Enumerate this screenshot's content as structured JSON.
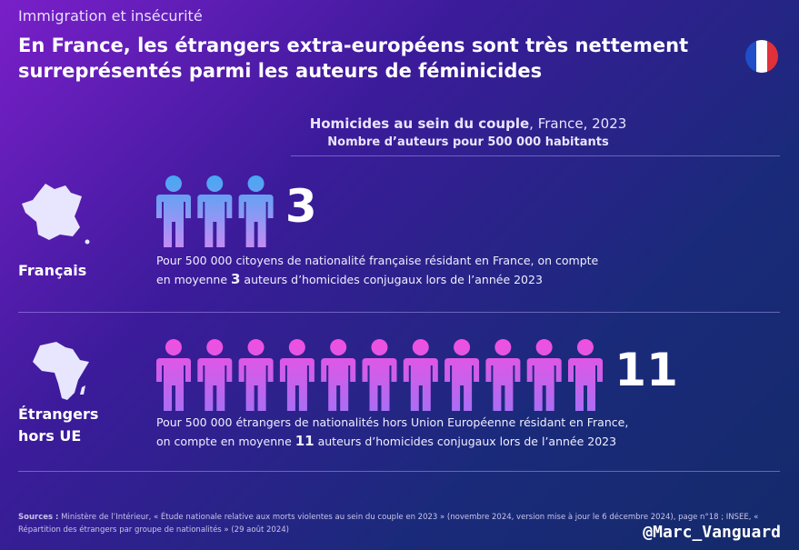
{
  "header": {
    "kicker": "Immigration et insécurité",
    "headline": "En France, les étrangers extra-européens sont très nettement surreprésentés parmi les auteurs de féminicides"
  },
  "chart_data": {
    "type": "pictogram",
    "title": "Homicides au sein du couple",
    "title_suffix": ", France, 2023",
    "subtitle": "Nombre d’auteurs pour 500 000 habitants",
    "categories": [
      "Français",
      "Étrangers hors UE"
    ],
    "values": [
      3,
      11
    ],
    "icon_colors": [
      [
        "#45a8f3",
        "#c28cf4"
      ],
      [
        "#f24fe0",
        "#a96ef4"
      ]
    ],
    "descriptions": [
      {
        "line1": "Pour 500 000 citoyens de nationalité française résidant en France, on compte",
        "before": "en moyenne ",
        "after": " auteurs d’homicides conjugaux lors de l’année 2023"
      },
      {
        "line1": "Pour 500 000 étrangers de nationalités hors Union Européenne résidant en France,",
        "before": "on compte en moyenne ",
        "after": " auteurs d’homicides conjugaux lors de l’année 2023"
      }
    ]
  },
  "footer": {
    "sources_label": "Sources :",
    "sources": " Ministère de l’Intérieur, « Étude nationale relative aux morts violentes au sein du couple en 2023 » (novembre 2024, version mise à jour le 6 décembre 2024), page n°18 ; INSEE, « Répartition des étrangers par groupe de nationalités » (29 août 2024)",
    "handle": "@Marc_Vanguard"
  }
}
